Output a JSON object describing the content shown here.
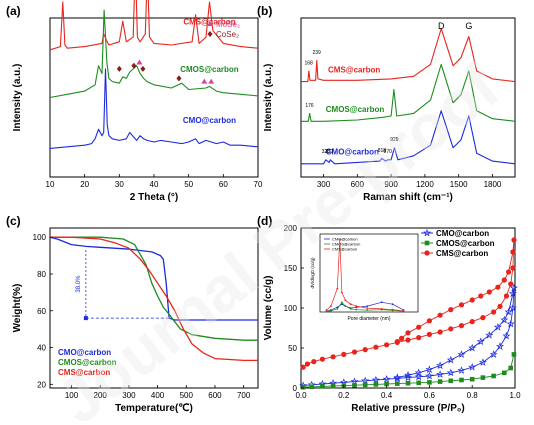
{
  "figure": {
    "watermark_text": "Journal Pre-proof"
  },
  "chart_data": [
    {
      "panel": "(a)",
      "type": "line",
      "xlabel": "2 Theta (°)",
      "ylabel": "Intensity (a.u.)",
      "xlim": [
        10,
        70
      ],
      "xticks": [
        10,
        20,
        30,
        40,
        50,
        60,
        70
      ],
      "legend": [
        {
          "label": "MoSe₂",
          "marker": "triangle",
          "color": "#e0409a"
        },
        {
          "label": "CoSe₂",
          "marker": "diamond",
          "color": "#8b1a1a"
        }
      ],
      "series": [
        {
          "name": "CMS@carbon",
          "color": "#e8241c",
          "baseline": 0.8,
          "x": [
            10,
            13,
            13.7,
            14.3,
            15,
            20,
            25,
            25.5,
            26.3,
            27,
            30,
            31,
            32,
            34,
            34.6,
            35.2,
            36,
            37.5,
            38.1,
            38.7,
            40,
            45,
            51,
            52,
            53,
            55,
            56,
            57,
            60,
            65,
            70
          ],
          "y": [
            0,
            0.02,
            0.3,
            0.03,
            0.01,
            0.02,
            0.04,
            0.1,
            0.06,
            0.03,
            0.05,
            0.18,
            0.05,
            0.08,
            0.55,
            0.08,
            0.05,
            0.1,
            0.5,
            0.08,
            0.04,
            0.03,
            0.05,
            0.22,
            0.04,
            0.08,
            0.3,
            0.12,
            0.04,
            0.02,
            0.01
          ]
        },
        {
          "name": "CMOS@carbon",
          "color": "#1e8c1e",
          "baseline": 0.5,
          "x": [
            10,
            15,
            20,
            23,
            24,
            25,
            25.6,
            26.4,
            27,
            28,
            30,
            31,
            32,
            33,
            34,
            35,
            36,
            37,
            38,
            40,
            45,
            48,
            50,
            55,
            56,
            58,
            60,
            65,
            70
          ],
          "y": [
            0,
            0.02,
            0.04,
            0.08,
            0.2,
            0.15,
            0.55,
            0.22,
            0.12,
            0.1,
            0.09,
            0.13,
            0.12,
            0.16,
            0.18,
            0.2,
            0.15,
            0.12,
            0.1,
            0.08,
            0.06,
            0.09,
            0.05,
            0.06,
            0.07,
            0.04,
            0.03,
            0.02,
            0.01
          ]
        },
        {
          "name": "CMO@carbon",
          "color": "#1c2ae0",
          "baseline": 0.18,
          "x": [
            10,
            15,
            20,
            22,
            23,
            24,
            25,
            25.5,
            26,
            26.5,
            27,
            28,
            30,
            32,
            33,
            35,
            36,
            37,
            38,
            40,
            42,
            45,
            48,
            50,
            52,
            53,
            55,
            58,
            60,
            62,
            65,
            70
          ],
          "y": [
            0,
            0.01,
            0.02,
            0.03,
            0.06,
            0.12,
            0.08,
            0.1,
            0.5,
            0.15,
            0.08,
            0.06,
            0.05,
            0.06,
            0.1,
            0.05,
            0.08,
            0.06,
            0.05,
            0.04,
            0.05,
            0.04,
            0.03,
            0.04,
            0.06,
            0.03,
            0.05,
            0.03,
            0.04,
            0.02,
            0.02,
            0.01
          ]
        }
      ],
      "markers": [
        {
          "type": "triangle",
          "color": "#e0409a",
          "x": [
            35.8,
            54.5,
            56.5
          ],
          "y": [
            0.72,
            0.6,
            0.6
          ]
        },
        {
          "type": "diamond",
          "color": "#8b1a1a",
          "x": [
            30.0,
            34.2,
            36.8,
            47.2
          ],
          "y": [
            0.68,
            0.7,
            0.68,
            0.62
          ]
        }
      ]
    },
    {
      "panel": "(b)",
      "type": "line",
      "xlabel": "Raman shift (cm⁻¹)",
      "ylabel": "Intensity (a.u.)",
      "xlim": [
        100,
        2000
      ],
      "xticks": [
        300,
        600,
        900,
        1200,
        1500,
        1800
      ],
      "peak_labels": [
        "D",
        "G"
      ],
      "peak_label_x": [
        1345,
        1590
      ],
      "series": [
        {
          "name": "CMS@carbon",
          "color": "#e8241c",
          "baseline": 0.7,
          "x": [
            100,
            160,
            170,
            180,
            230,
            240,
            250,
            300,
            600,
            900,
            1100,
            1250,
            1345,
            1450,
            1520,
            1590,
            1660,
            1800,
            2000
          ],
          "y": [
            0.02,
            0.02,
            0.1,
            0.03,
            0.03,
            0.18,
            0.04,
            0.03,
            0.03,
            0.04,
            0.06,
            0.15,
            0.42,
            0.14,
            0.2,
            0.36,
            0.1,
            0.04,
            0.02
          ]
        },
        {
          "name": "CMOS@carbon",
          "color": "#1e8c1e",
          "baseline": 0.4,
          "x": [
            100,
            165,
            176,
            190,
            300,
            600,
            820,
            900,
            925,
            950,
            1100,
            1250,
            1345,
            1450,
            1520,
            1590,
            1660,
            1800,
            2000
          ],
          "y": [
            0.02,
            0.02,
            0.08,
            0.02,
            0.02,
            0.03,
            0.05,
            0.06,
            0.26,
            0.06,
            0.08,
            0.18,
            0.45,
            0.16,
            0.22,
            0.4,
            0.1,
            0.04,
            0.02
          ]
        },
        {
          "name": "CMO@carbon",
          "color": "#1c2ae0",
          "baseline": 0.08,
          "x": [
            100,
            300,
            320,
            350,
            360,
            400,
            600,
            800,
            818,
            850,
            870,
            900,
            929,
            960,
            1100,
            1250,
            1345,
            1450,
            1520,
            1590,
            1660,
            1800,
            2000
          ],
          "y": [
            0.02,
            0.02,
            0.05,
            0.03,
            0.05,
            0.02,
            0.03,
            0.04,
            0.06,
            0.04,
            0.05,
            0.05,
            0.14,
            0.05,
            0.08,
            0.16,
            0.42,
            0.14,
            0.2,
            0.38,
            0.1,
            0.04,
            0.02
          ]
        }
      ],
      "peak_annotations": [
        {
          "text": "168",
          "x": 168,
          "series": "CMS@carbon"
        },
        {
          "text": "239",
          "x": 239,
          "series": "CMS@carbon"
        },
        {
          "text": "176",
          "x": 176,
          "series": "CMOS@carbon"
        },
        {
          "text": "320",
          "x": 320,
          "series": "CMO@carbon"
        },
        {
          "text": "352",
          "x": 352,
          "series": "CMO@carbon"
        },
        {
          "text": "818",
          "x": 818,
          "series": "CMO@carbon"
        },
        {
          "text": "870",
          "x": 870,
          "series": "CMO@carbon"
        },
        {
          "text": "929",
          "x": 929,
          "series": "CMO@carbon"
        }
      ]
    },
    {
      "panel": "(c)",
      "type": "line",
      "xlabel": "Temperature(℃)",
      "ylabel": "Weight(%)",
      "xlim": [
        25,
        750
      ],
      "ylim": [
        18,
        105
      ],
      "xticks": [
        100,
        200,
        300,
        400,
        500,
        600,
        700
      ],
      "yticks": [
        20,
        40,
        60,
        80,
        100
      ],
      "annotation": {
        "text": "38.0%",
        "x": 150,
        "y_from": 93,
        "y_to": 56
      },
      "series": [
        {
          "name": "CMO@carbon",
          "color": "#1c2ae0",
          "x": [
            25,
            50,
            100,
            150,
            200,
            300,
            380,
            410,
            420,
            430,
            440,
            460,
            500,
            600,
            750
          ],
          "y": [
            100,
            99,
            96,
            95,
            94.5,
            93.5,
            92,
            90,
            88,
            75,
            56,
            55,
            55,
            55,
            55
          ]
        },
        {
          "name": "CMOS@carbon",
          "color": "#1e8c1e",
          "x": [
            25,
            100,
            200,
            280,
            320,
            360,
            380,
            400,
            420,
            440,
            460,
            480,
            520,
            600,
            700,
            750
          ],
          "y": [
            100,
            100,
            100,
            99,
            96,
            85,
            75,
            68,
            62,
            58,
            54,
            50,
            47,
            45,
            44,
            44
          ]
        },
        {
          "name": "CMS@carbon",
          "color": "#e8241c",
          "x": [
            25,
            100,
            200,
            250,
            300,
            340,
            370,
            400,
            430,
            460,
            490,
            520,
            560,
            600,
            700,
            750
          ],
          "y": [
            100,
            100,
            99,
            97,
            94,
            88,
            82,
            75,
            68,
            60,
            50,
            42,
            37,
            34,
            33,
            33
          ]
        }
      ]
    },
    {
      "panel": "(d)",
      "type": "scatter",
      "xlabel": "Relative pressure (P/P₀)",
      "ylabel": "Volume (cc/g)",
      "xlim": [
        0,
        1.0
      ],
      "ylim": [
        0,
        200
      ],
      "xticks": [
        0.0,
        0.2,
        0.4,
        0.6,
        0.8,
        1.0
      ],
      "yticks": [
        0,
        50,
        100,
        150,
        200
      ],
      "legend_position": "top-right",
      "series": [
        {
          "name": "CMO@carbon",
          "color": "#1c2ae0",
          "marker": "star",
          "x": [
            0.01,
            0.05,
            0.1,
            0.15,
            0.2,
            0.25,
            0.3,
            0.35,
            0.4,
            0.45,
            0.5,
            0.55,
            0.6,
            0.65,
            0.7,
            0.75,
            0.8,
            0.85,
            0.9,
            0.93,
            0.96,
            0.98,
            0.99,
            0.995,
            0.99,
            0.97,
            0.95,
            0.92,
            0.88,
            0.84,
            0.8,
            0.75,
            0.7,
            0.65,
            0.6,
            0.55,
            0.5,
            0.45
          ],
          "y": [
            3,
            4,
            5,
            6,
            7,
            8,
            9,
            10,
            11,
            12,
            13,
            14,
            15,
            17,
            19,
            22,
            26,
            32,
            42,
            52,
            65,
            80,
            100,
            125,
            118,
            95,
            85,
            76,
            66,
            58,
            50,
            42,
            35,
            28,
            23,
            19,
            16,
            13
          ]
        },
        {
          "name": "CMOS@carbon",
          "color": "#1e8c1e",
          "marker": "square",
          "x": [
            0.01,
            0.05,
            0.1,
            0.15,
            0.2,
            0.25,
            0.3,
            0.35,
            0.4,
            0.45,
            0.5,
            0.55,
            0.6,
            0.65,
            0.7,
            0.75,
            0.8,
            0.85,
            0.9,
            0.95,
            0.98,
            0.995
          ],
          "y": [
            1,
            1.5,
            2,
            2.5,
            3,
            3.5,
            4,
            4.5,
            5,
            5.5,
            6,
            6.5,
            7,
            8,
            9,
            10,
            11,
            13,
            15,
            19,
            25,
            42
          ]
        },
        {
          "name": "CMS@carbon",
          "color": "#e8241c",
          "marker": "circle",
          "x": [
            0.01,
            0.03,
            0.06,
            0.1,
            0.15,
            0.2,
            0.25,
            0.3,
            0.35,
            0.4,
            0.45,
            0.5,
            0.55,
            0.6,
            0.65,
            0.7,
            0.75,
            0.8,
            0.85,
            0.9,
            0.93,
            0.96,
            0.98,
            0.99,
            0.995,
            0.99,
            0.97,
            0.95,
            0.92,
            0.88,
            0.84,
            0.8,
            0.75,
            0.7,
            0.65,
            0.6,
            0.55,
            0.5,
            0.47,
            0.45
          ],
          "y": [
            26,
            30,
            33,
            36,
            39,
            42,
            45,
            48,
            51,
            54,
            57,
            60,
            63,
            67,
            70,
            74,
            78,
            83,
            88,
            95,
            102,
            115,
            130,
            150,
            185,
            170,
            145,
            135,
            126,
            120,
            115,
            110,
            104,
            98,
            91,
            84,
            76,
            69,
            62,
            58
          ]
        }
      ],
      "inset": {
        "xlabel": "Pore diameter (nm)",
        "ylabel": "dV/dlogD (cc/g)",
        "log_x": true,
        "xlim": [
          1,
          500
        ],
        "ylim": [
          0,
          2.0
        ],
        "series": [
          {
            "name": "CMO@carbon",
            "color": "#1c2ae0",
            "x": [
              1.5,
              2,
              3,
              4,
              5,
              7,
              10,
              20,
              50,
              100,
              200
            ],
            "y": [
              0.02,
              0.05,
              0.12,
              0.2,
              0.15,
              0.1,
              0.12,
              0.15,
              0.25,
              0.2,
              0.05
            ]
          },
          {
            "name": "CMOS@carbon",
            "color": "#1e8c1e",
            "x": [
              1.5,
              2,
              3,
              4,
              5,
              7,
              10,
              20,
              50,
              100,
              200
            ],
            "y": [
              0.01,
              0.03,
              0.08,
              0.25,
              0.15,
              0.08,
              0.06,
              0.05,
              0.06,
              0.04,
              0.02
            ]
          },
          {
            "name": "CMS@carbon",
            "color": "#e8241c",
            "x": [
              1.5,
              2,
              3,
              3.5,
              4,
              5,
              7,
              10,
              20,
              50,
              100,
              200
            ],
            "y": [
              0.05,
              0.15,
              0.6,
              1.85,
              0.5,
              0.3,
              0.2,
              0.15,
              0.1,
              0.08,
              0.06,
              0.03
            ]
          }
        ]
      }
    }
  ]
}
